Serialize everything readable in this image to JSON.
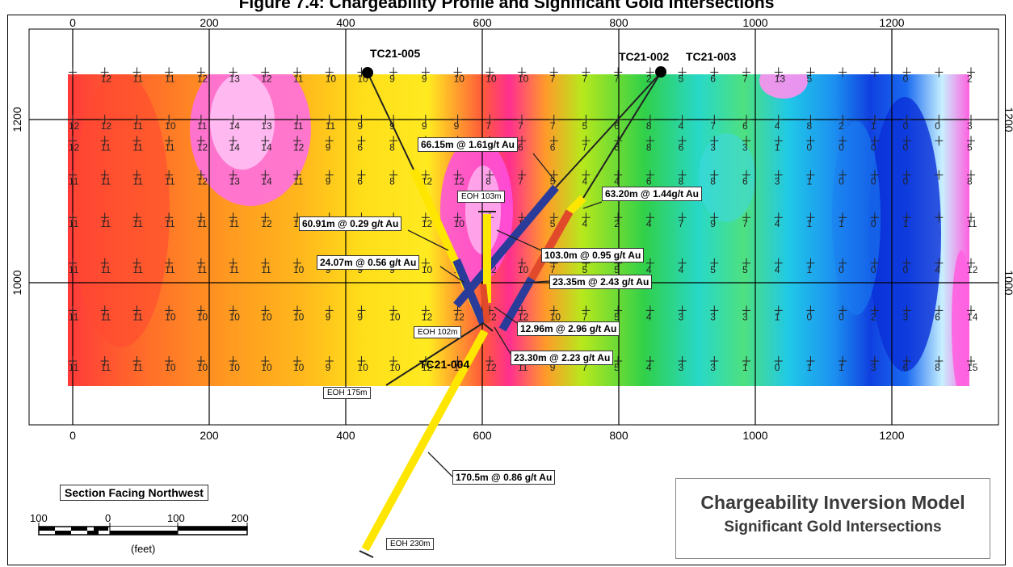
{
  "figure": {
    "title": "Figure 7.4: Chargeability Profile and Significant Gold Intersections"
  },
  "axis": {
    "x_ticks": [
      "0",
      "200",
      "400",
      "600",
      "800",
      "1000",
      "1200"
    ],
    "y_ticks": [
      "1200",
      "1000"
    ]
  },
  "grid_rows": [
    {
      "y": 1258,
      "values": [
        "",
        "12",
        "11",
        "11",
        "12",
        "13",
        "12",
        "11",
        "10",
        "10",
        "9",
        "9",
        "10",
        "10",
        "10",
        "7",
        "7",
        "7",
        "2",
        "5",
        "6",
        "7",
        "13",
        "5",
        "",
        "",
        "0",
        "",
        "2"
      ]
    },
    {
      "y": 1200,
      "values": [
        "12",
        "12",
        "11",
        "10",
        "11",
        "14",
        "13",
        "11",
        "11",
        "9",
        "9",
        "9",
        "9",
        "7",
        "7",
        "7",
        "5",
        "6",
        "8",
        "4",
        "7",
        "6",
        "4",
        "8",
        "2",
        "1",
        "0",
        "0",
        "3"
      ]
    },
    {
      "y": 1174,
      "values": [
        "12",
        "11",
        "11",
        "11",
        "12",
        "14",
        "14",
        "12",
        "9",
        "6",
        "8",
        "8",
        "8",
        "5",
        "6",
        "6",
        "7",
        "6",
        "8",
        "6",
        "3",
        "3",
        "1",
        "0",
        "0",
        "0",
        "0",
        "",
        "5"
      ]
    },
    {
      "y": 1132,
      "values": [
        "11",
        "11",
        "11",
        "11",
        "12",
        "13",
        "14",
        "11",
        "9",
        "6",
        "8",
        "12",
        "12",
        "8",
        "7",
        "5",
        "4",
        "4",
        "6",
        "8",
        "8",
        "6",
        "3",
        "1",
        "0",
        "0",
        "0",
        "",
        "8"
      ]
    },
    {
      "y": 1080,
      "values": [
        "11",
        "11",
        "11",
        "11",
        "11",
        "11",
        "12",
        "12",
        "9",
        "7",
        "8",
        "12",
        "10",
        "9",
        "10",
        "5",
        "4",
        "2",
        "4",
        "7",
        "9",
        "7",
        "4",
        "1",
        "1",
        "0",
        "1",
        "",
        "11"
      ]
    },
    {
      "y": 1024,
      "values": [
        "11",
        "11",
        "11",
        "11",
        "11",
        "11",
        "11",
        "10",
        "9",
        "9",
        "9",
        "10",
        "13",
        "12",
        "10",
        "7",
        "5",
        "5",
        "4",
        "4",
        "5",
        "5",
        "4",
        "1",
        "0",
        "0",
        "0",
        "4",
        "12"
      ]
    },
    {
      "y": 966,
      "values": [
        "11",
        "11",
        "11",
        "10",
        "10",
        "10",
        "10",
        "10",
        "9",
        "9",
        "10",
        "12",
        "12",
        "12",
        "12",
        "10",
        "7",
        "5",
        "4",
        "3",
        "3",
        "3",
        "1",
        "0",
        "0",
        "2",
        "3",
        "6",
        "14"
      ]
    },
    {
      "y": 904,
      "values": [
        "11",
        "11",
        "11",
        "10",
        "10",
        "10",
        "10",
        "10",
        "9",
        "10",
        "10",
        "12",
        "12",
        "12",
        "11",
        "9",
        "7",
        "5",
        "4",
        "3",
        "3",
        "1",
        "0",
        "1",
        "1",
        "3",
        "6",
        "8",
        "15"
      ]
    }
  ],
  "drillholes": [
    {
      "id": "TC21-005",
      "eoh": "EOH 175m"
    },
    {
      "id": "TC21-002",
      "eoh": "EOH 103m"
    },
    {
      "id": "TC21-003",
      "eoh": "EOH 102m"
    },
    {
      "id": "TC21-004",
      "eoh": "EOH 230m"
    }
  ],
  "intersections": [
    {
      "label": "66.15m @ 1.61g/t Au"
    },
    {
      "label": "63.20m @ 1.44g/t Au"
    },
    {
      "label": "60.91m @ 0.29 g/t Au"
    },
    {
      "label": "103.0m @ 0.95 g/t Au"
    },
    {
      "label": "24.07m @ 0.56 g/t Au"
    },
    {
      "label": "23.35m @ 2.43 g/t Au"
    },
    {
      "label": "12.96m @ 2.96 g/t Au"
    },
    {
      "label": "23.30m @ 2.23 g/t Au"
    },
    {
      "label": "170.5m @ 0.86 g/t Au"
    }
  ],
  "scale_bar": {
    "title": "Section Facing Northwest",
    "ticks": [
      "100",
      "0",
      "100",
      "200"
    ],
    "unit": "(feet)"
  },
  "legend": {
    "line1": "Chargeability Inversion Model",
    "line2": "Significant Gold Intersections"
  },
  "colors": {
    "high": "#ff2f8f",
    "low": "#1040e0",
    "mineral_high": "#2a3b9a",
    "mineral_mid": "#e04a2a",
    "mineral_low": "#ffe600"
  }
}
